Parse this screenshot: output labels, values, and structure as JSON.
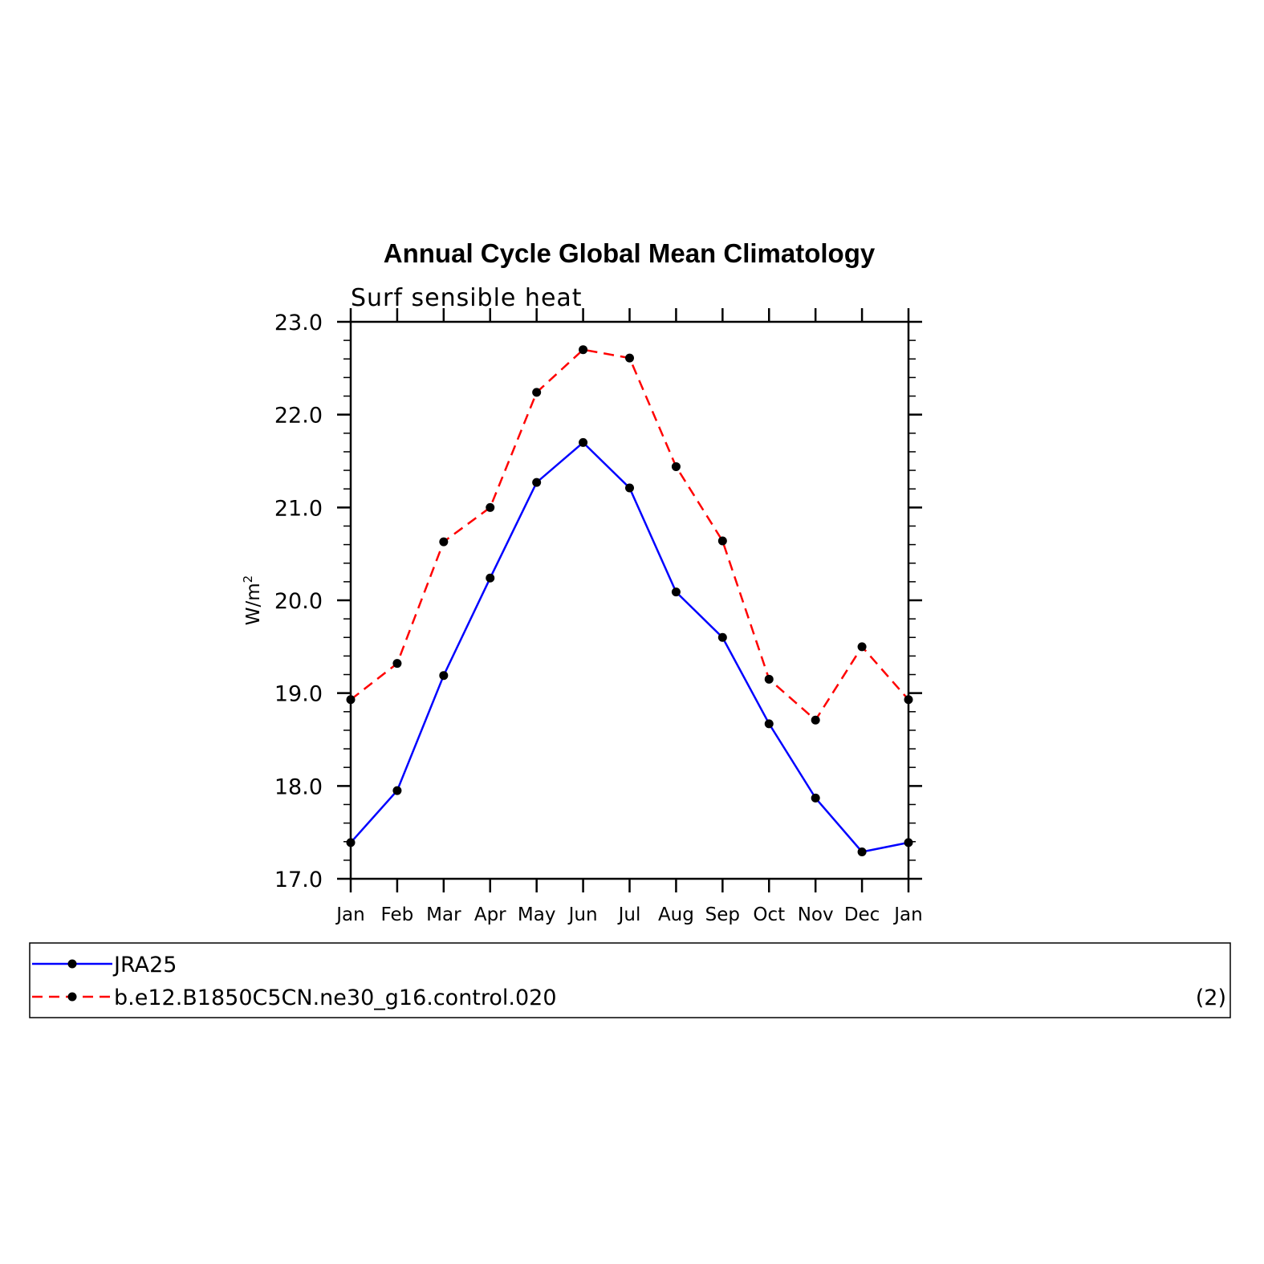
{
  "chart_data": {
    "type": "line",
    "title": "Annual Cycle Global Mean Climatology",
    "subtitle": "Surf sensible heat",
    "ylabel": "W/m",
    "ylabel_superscript": "2",
    "ylim": [
      17.0,
      23.0
    ],
    "yticks": [
      "17.0",
      "18.0",
      "19.0",
      "20.0",
      "21.0",
      "22.0",
      "23.0"
    ],
    "categories": [
      "Jan",
      "Feb",
      "Mar",
      "Apr",
      "May",
      "Jun",
      "Jul",
      "Aug",
      "Sep",
      "Oct",
      "Nov",
      "Dec",
      "Jan"
    ],
    "series": [
      {
        "name": "JRA25",
        "color": "#0000ff",
        "dash": "solid",
        "values": [
          17.39,
          17.95,
          19.19,
          20.24,
          21.27,
          21.7,
          21.21,
          20.09,
          19.6,
          18.67,
          17.87,
          17.29,
          17.39
        ]
      },
      {
        "name": "b.e12.B1850C5CN.ne30_g16.control.020",
        "color": "#ff0000",
        "dash": "dashed",
        "values": [
          18.93,
          19.32,
          20.63,
          21.0,
          22.24,
          22.7,
          22.61,
          21.44,
          20.64,
          19.15,
          18.71,
          19.5,
          18.93
        ]
      }
    ],
    "legend_tag": "(2)",
    "marker_color": "#000000"
  }
}
